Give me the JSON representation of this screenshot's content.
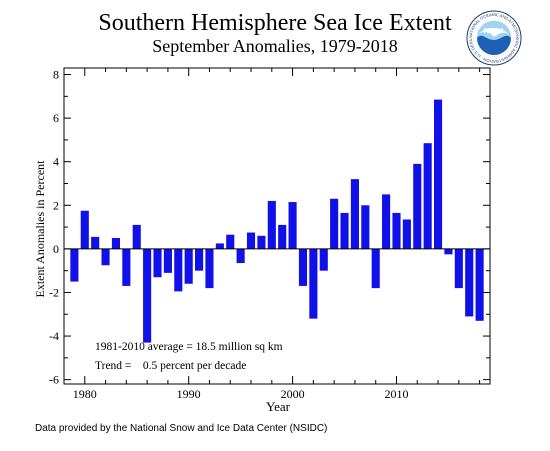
{
  "title": "Southern Hemisphere Sea Ice Extent",
  "subtitle": "September Anomalies, 1979-2018",
  "footer": "Data provided by the National Snow and Ice Data Center (NSIDC)",
  "annotations": {
    "average": "1981-2010 average = 18.5 million sq km",
    "trend": "Trend =    0.5 percent per decade"
  },
  "logo": {
    "text": "NOAA",
    "ring_text": "NATIONAL OCEANIC AND ATMOSPHERIC ADMINISTRATION · U.S. DEPARTMENT OF COMMERCE"
  },
  "colors": {
    "bar": "#1010e8",
    "axis": "#000000",
    "logo_blue": "#1f5fb5",
    "logo_navy": "#1b3a6e",
    "logo_light": "#9fd3f0"
  },
  "chart_data": {
    "type": "bar",
    "xlabel": "Year",
    "ylabel": "Extent Anomalies in Percent",
    "xlim": [
      1978,
      2019
    ],
    "ylim": [
      -6.2,
      8.3
    ],
    "x_ticks": [
      1980,
      1990,
      2000,
      2010
    ],
    "y_ticks": [
      -6,
      -4,
      -2,
      0,
      2,
      4,
      6,
      8
    ],
    "grid": false,
    "legend": "none",
    "x": [
      1979,
      1980,
      1981,
      1982,
      1983,
      1984,
      1985,
      1986,
      1987,
      1988,
      1989,
      1990,
      1991,
      1992,
      1993,
      1994,
      1995,
      1996,
      1997,
      1998,
      1999,
      2000,
      2001,
      2002,
      2003,
      2004,
      2005,
      2006,
      2007,
      2008,
      2009,
      2010,
      2011,
      2012,
      2013,
      2014,
      2015,
      2016,
      2017,
      2018
    ],
    "values": [
      -1.5,
      1.75,
      0.55,
      -0.75,
      0.5,
      -1.7,
      1.1,
      -4.3,
      -1.3,
      -1.1,
      -1.95,
      -1.6,
      -1.0,
      -1.8,
      0.25,
      0.65,
      -0.65,
      0.75,
      0.6,
      2.2,
      1.1,
      2.15,
      -1.7,
      -3.2,
      -1.0,
      2.3,
      1.65,
      3.2,
      2.0,
      -1.8,
      2.5,
      1.65,
      1.35,
      3.9,
      4.85,
      6.85,
      -0.25,
      -1.8,
      -3.1,
      -3.3
    ]
  }
}
